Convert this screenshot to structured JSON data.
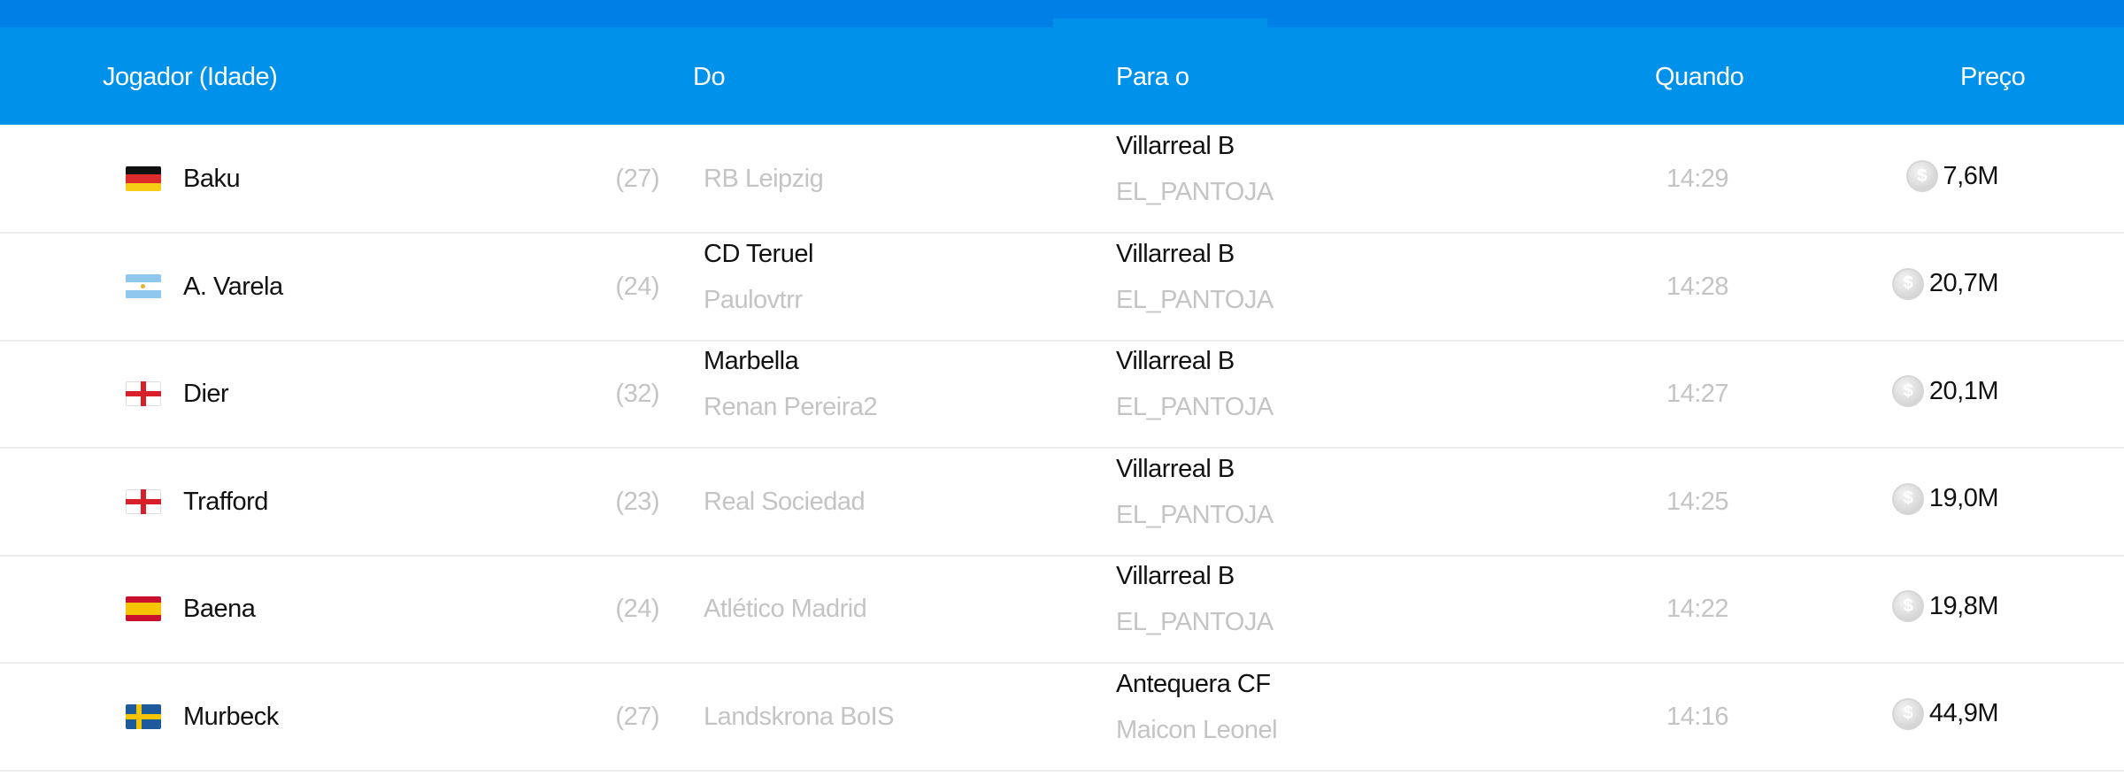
{
  "header": {
    "player": "Jogador (Idade)",
    "from": "Do",
    "to": "Para o",
    "when": "Quando",
    "price": "Preço"
  },
  "colors": {
    "topbar": "#0080e6",
    "header": "#0091ea",
    "muted": "#c4c4c4"
  },
  "rows": [
    {
      "flag": "germany",
      "name": "Baku",
      "age": "(27)",
      "from_club": "RB Leipzig",
      "from_user": "",
      "to_club": "Villarreal B",
      "to_user": "EL_PANTOJA",
      "time": "14:29",
      "price": "7,6M"
    },
    {
      "flag": "argentina",
      "name": "A. Varela",
      "age": "(24)",
      "from_club": "CD Teruel",
      "from_user": "Paulovtrr",
      "to_club": "Villarreal B",
      "to_user": "EL_PANTOJA",
      "time": "14:28",
      "price": "20,7M"
    },
    {
      "flag": "england",
      "name": "Dier",
      "age": "(32)",
      "from_club": "Marbella",
      "from_user": "Renan Pereira2",
      "to_club": "Villarreal B",
      "to_user": "EL_PANTOJA",
      "time": "14:27",
      "price": "20,1M"
    },
    {
      "flag": "england",
      "name": "Trafford",
      "age": "(23)",
      "from_club": "Real Sociedad",
      "from_user": "",
      "to_club": "Villarreal B",
      "to_user": "EL_PANTOJA",
      "time": "14:25",
      "price": "19,0M"
    },
    {
      "flag": "spain",
      "name": "Baena",
      "age": "(24)",
      "from_club": "Atlético Madrid",
      "from_user": "",
      "to_club": "Villarreal B",
      "to_user": "EL_PANTOJA",
      "time": "14:22",
      "price": "19,8M"
    },
    {
      "flag": "sweden",
      "name": "Murbeck",
      "age": "(27)",
      "from_club": "Landskrona BoIS",
      "from_user": "",
      "to_club": "Antequera CF",
      "to_user": "Maicon Leonel",
      "time": "14:16",
      "price": "44,9M"
    }
  ]
}
